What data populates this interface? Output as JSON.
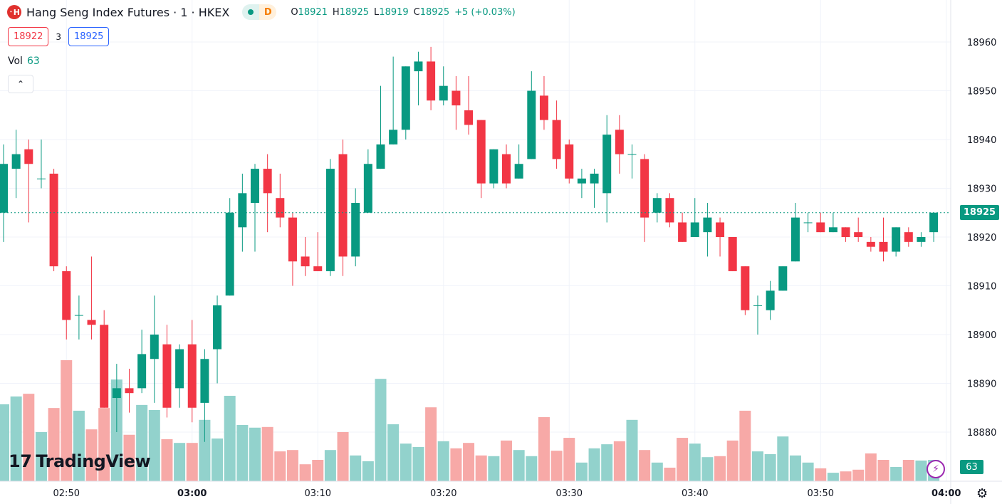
{
  "header": {
    "symbol_title": "Hang Seng Index Futures · 1 · HKEX",
    "symbol_icon": "hsi-logo",
    "market_status_badge": "D",
    "ohlc": {
      "o_label": "O",
      "o": "18921",
      "h_label": "H",
      "h": "18925",
      "l_label": "L",
      "l": "18919",
      "c_label": "C",
      "c": "18925",
      "change": "+5 (+0.03%)"
    }
  },
  "quotes": {
    "bid": "18922",
    "spread": "3",
    "ask": "18925"
  },
  "volume_legend": {
    "label": "Vol",
    "value": "63"
  },
  "price_axis": {
    "current_price_label": "18925",
    "current_volume_label": "63"
  },
  "branding": {
    "logo_text": "TradingView"
  },
  "colors": {
    "up": "#089981",
    "down": "#f23645",
    "up_volume": "#92d2cc",
    "down_volume": "#f7a9a7",
    "current_price_line": "#089981"
  },
  "icons": {
    "collapse": "chevron-up-icon",
    "bolt": "lightning-icon",
    "settings": "gear-icon"
  },
  "chart_data": {
    "type": "candlestick",
    "interval": "1 minute",
    "ylim": [
      18874,
      18965
    ],
    "y_ticks": [
      18960,
      18950,
      18940,
      18930,
      18920,
      18910,
      18900,
      18890,
      18880
    ],
    "x_ticks": [
      {
        "label": "02:50",
        "minute": 5,
        "bold": false
      },
      {
        "label": "03:00",
        "minute": 15,
        "bold": true
      },
      {
        "label": "03:10",
        "minute": 25,
        "bold": false
      },
      {
        "label": "03:20",
        "minute": 35,
        "bold": false
      },
      {
        "label": "03:30",
        "minute": 45,
        "bold": false
      },
      {
        "label": "03:40",
        "minute": 55,
        "bold": false
      },
      {
        "label": "03:50",
        "minute": 65,
        "bold": false
      },
      {
        "label": "04:00",
        "minute": 75,
        "bold": true
      }
    ],
    "start_time": "02:45",
    "grid": true,
    "current_price": 18925,
    "candles": [
      [
        18925,
        18939,
        18919,
        18935,
        227
      ],
      [
        18934,
        18942,
        18928,
        18937,
        250
      ],
      [
        18938,
        18940,
        18923,
        18935,
        258
      ],
      [
        18932,
        18940,
        18930,
        18932,
        145
      ],
      [
        18933,
        18934,
        18913,
        18914,
        216
      ],
      [
        18913,
        18914,
        18899,
        18903,
        357
      ],
      [
        18904,
        18908,
        18899,
        18904,
        208
      ],
      [
        18903,
        18916,
        18899,
        18902,
        153
      ],
      [
        18902,
        18905,
        18885,
        18885,
        216
      ],
      [
        18887,
        18894,
        18880,
        18889,
        300
      ],
      [
        18889,
        18893,
        18884,
        18888,
        137
      ],
      [
        18889,
        18901,
        18888,
        18896,
        225
      ],
      [
        18895,
        18908,
        18886,
        18900,
        210
      ],
      [
        18898,
        18902,
        18883,
        18885,
        124
      ],
      [
        18889,
        18898,
        18885,
        18897,
        113
      ],
      [
        18898,
        18903,
        18882,
        18885,
        113
      ],
      [
        18886,
        18897,
        18878,
        18895,
        181
      ],
      [
        18897,
        18908,
        18890,
        18906,
        126
      ],
      [
        18908,
        18928,
        18908,
        18925,
        252
      ],
      [
        18922,
        18933,
        18917,
        18929,
        166
      ],
      [
        18927,
        18935,
        18917,
        18934,
        158
      ],
      [
        18934,
        18937,
        18921,
        18929,
        160
      ],
      [
        18928,
        18933,
        18922,
        18924,
        88
      ],
      [
        18924,
        18925,
        18910,
        18915,
        92
      ],
      [
        18916,
        18920,
        18912,
        18914,
        50
      ],
      [
        18914,
        18921,
        18913,
        18913,
        63
      ],
      [
        18913,
        18936,
        18912,
        18934,
        92
      ],
      [
        18937,
        18940,
        18912,
        18916,
        145
      ],
      [
        18916,
        18930,
        18914,
        18927,
        76
      ],
      [
        18925,
        18938,
        18925,
        18935,
        59
      ],
      [
        18934,
        18951,
        18934,
        18939,
        302
      ],
      [
        18939,
        18957,
        18939,
        18942,
        168
      ],
      [
        18942,
        18955,
        18940,
        18955,
        111
      ],
      [
        18954,
        18958,
        18947,
        18956,
        101
      ],
      [
        18956,
        18959,
        18946,
        18948,
        218
      ],
      [
        18948,
        18955,
        18947,
        18951,
        118
      ],
      [
        18950,
        18953,
        18942,
        18947,
        97
      ],
      [
        18946,
        18953,
        18941,
        18943,
        113
      ],
      [
        18944,
        18944,
        18928,
        18931,
        76
      ],
      [
        18931,
        18938,
        18930,
        18938,
        74
      ],
      [
        18937,
        18939,
        18930,
        18931,
        120
      ],
      [
        18932,
        18939,
        18932,
        18935,
        92
      ],
      [
        18936,
        18954,
        18936,
        18950,
        74
      ],
      [
        18949,
        18953,
        18942,
        18944,
        189
      ],
      [
        18944,
        18948,
        18934,
        18936,
        90
      ],
      [
        18939,
        18940,
        18931,
        18932,
        128
      ],
      [
        18931,
        18934,
        18928,
        18932,
        55
      ],
      [
        18931,
        18934,
        18926,
        18933,
        97
      ],
      [
        18929,
        18945,
        18923,
        18941,
        109
      ],
      [
        18942,
        18945,
        18933,
        18937,
        118
      ],
      [
        18937,
        18939,
        18932,
        18937,
        181
      ],
      [
        18936,
        18937,
        18919,
        18924,
        92
      ],
      [
        18925,
        18929,
        18923,
        18928,
        55
      ],
      [
        18928,
        18929,
        18922,
        18923,
        40
      ],
      [
        18923,
        18925,
        18919,
        18919,
        128
      ],
      [
        18920,
        18928,
        18920,
        18923,
        111
      ],
      [
        18921,
        18927,
        18916,
        18924,
        71
      ],
      [
        18923,
        18924,
        18916,
        18920,
        74
      ],
      [
        18920,
        18920,
        18913,
        18913,
        120
      ],
      [
        18914,
        18914,
        18904,
        18905,
        208
      ],
      [
        18906,
        18908,
        18900,
        18906,
        88
      ],
      [
        18905,
        18911,
        18903,
        18909,
        80
      ],
      [
        18909,
        18914,
        18909,
        18914,
        132
      ],
      [
        18915,
        18927,
        18915,
        18924,
        76
      ],
      [
        18923,
        18925,
        18921,
        18923,
        55
      ],
      [
        18923,
        18925,
        18921,
        18921,
        38
      ],
      [
        18921,
        18925,
        18921,
        18922,
        25
      ],
      [
        18922,
        18922,
        18919,
        18920,
        29
      ],
      [
        18921,
        18924,
        18919,
        18920,
        34
      ],
      [
        18919,
        18920,
        18917,
        18918,
        82
      ],
      [
        18919,
        18924,
        18915,
        18917,
        63
      ],
      [
        18917,
        18922,
        18916,
        18922,
        42
      ],
      [
        18921,
        18922,
        18918,
        18919,
        63
      ],
      [
        18919,
        18921,
        18918,
        18920,
        61
      ],
      [
        18921,
        18925,
        18919,
        18925,
        63
      ]
    ],
    "candle_fields": [
      "open",
      "high",
      "low",
      "close",
      "volume"
    ]
  }
}
